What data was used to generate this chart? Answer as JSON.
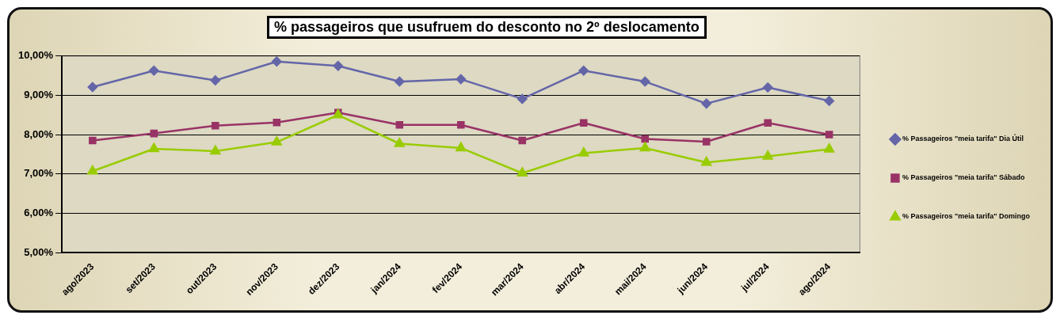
{
  "chart_data": {
    "type": "line",
    "title": "% passageiros que usufruem do desconto no 2º deslocamento",
    "categories": [
      "ago/2023",
      "set/2023",
      "out/2023",
      "nov/2023",
      "dez/2023",
      "jan/2024",
      "fev/2024",
      "mar/2024",
      "abr/2024",
      "mai/2024",
      "jun/2024",
      "jul/2024",
      "ago/2024"
    ],
    "series": [
      {
        "name": "% Passageiros \"meia tarifa\" Dia Útil",
        "color": "#6466a8",
        "marker": "diamond",
        "values": [
          9.21,
          9.63,
          9.38,
          9.86,
          9.75,
          9.35,
          9.41,
          8.91,
          9.63,
          9.35,
          8.79,
          9.2,
          8.86
        ]
      },
      {
        "name": "% Passageiros \"meia tarifa\" Sábado",
        "color": "#993366",
        "marker": "square",
        "values": [
          7.85,
          8.03,
          8.23,
          8.31,
          8.56,
          8.25,
          8.25,
          7.85,
          8.3,
          7.89,
          7.82,
          8.3,
          8.0
        ]
      },
      {
        "name": "% Passageiros \"meia tarifa\" Domingo",
        "color": "#99cc00",
        "marker": "triangle",
        "values": [
          7.07,
          7.64,
          7.58,
          7.81,
          8.5,
          7.77,
          7.66,
          7.02,
          7.53,
          7.66,
          7.29,
          7.45,
          7.63
        ]
      }
    ],
    "ylim": [
      5,
      10
    ],
    "yticks": [
      {
        "value": 5,
        "label": "5,00%"
      },
      {
        "value": 6,
        "label": "6,00%"
      },
      {
        "value": 7,
        "label": "7,00%"
      },
      {
        "value": 8,
        "label": "8,00%"
      },
      {
        "value": 9,
        "label": "9,00%"
      },
      {
        "value": 10,
        "label": "10,00%"
      }
    ],
    "grid": "y",
    "legend": "right",
    "line_style": "solid"
  }
}
